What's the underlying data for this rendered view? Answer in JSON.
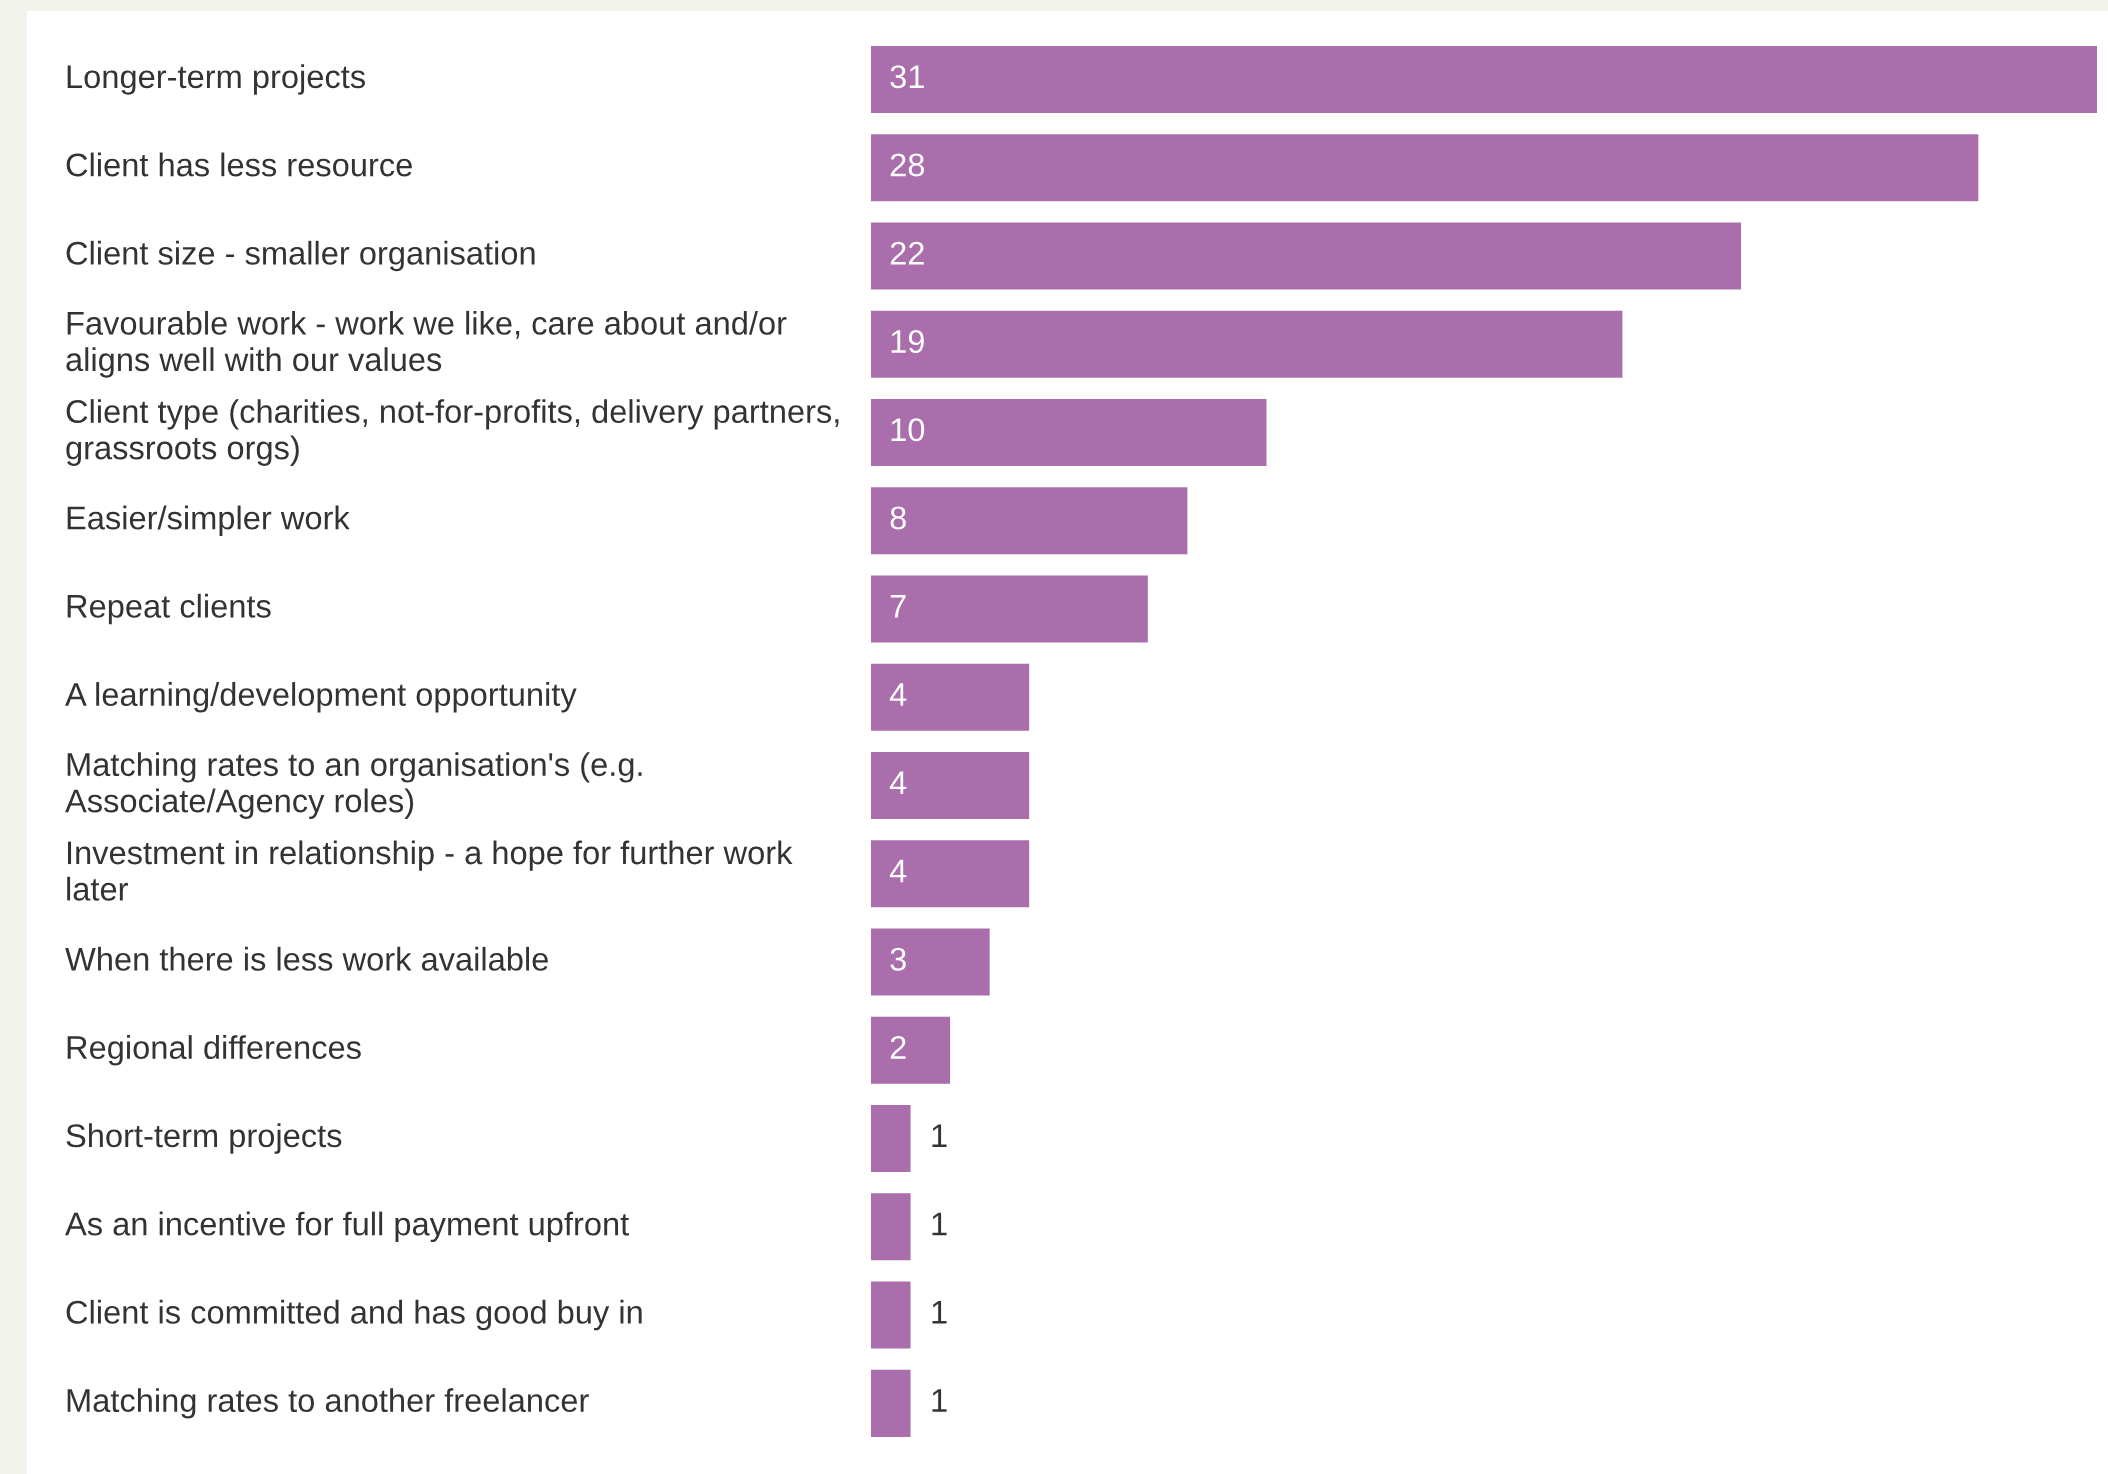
{
  "chart_data": {
    "type": "bar",
    "orientation": "horizontal",
    "data_labels": true,
    "legend": false,
    "color": "#a96eab",
    "categories": [
      "Longer-term projects",
      "Client has less resource",
      "Client size - smaller organisation",
      "Favourable work - work we like, care about and/or aligns well with our values",
      "Client type (charities, not-for-profits, delivery partners, grassroots orgs)",
      "Easier/simpler work",
      "Repeat clients",
      "A learning/development opportunity",
      "Matching rates to an organisation's (e.g. Associate/Agency roles)",
      "Investment in relationship - a hope for further work later",
      "When there is less work available",
      "Regional differences",
      "Short-term projects",
      "As an incentive for full payment upfront",
      "Client is committed and has good buy in",
      "Matching rates to another freelancer"
    ],
    "values": [
      31,
      28,
      22,
      19,
      10,
      8,
      7,
      4,
      4,
      4,
      3,
      2,
      1,
      1,
      1,
      1
    ]
  }
}
